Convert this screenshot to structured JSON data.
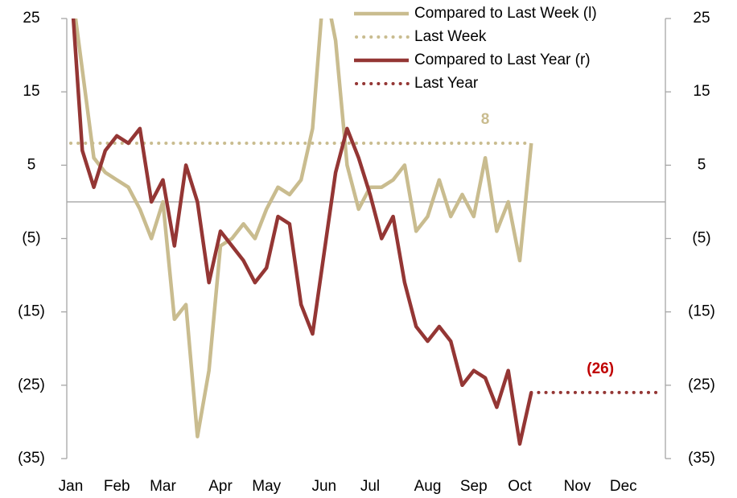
{
  "chart_data": {
    "type": "line",
    "categories": [
      "Jan",
      null,
      null,
      null,
      "Feb",
      null,
      null,
      null,
      "Mar",
      null,
      null,
      null,
      null,
      "Apr",
      null,
      null,
      null,
      "May",
      null,
      null,
      null,
      null,
      "Jun",
      null,
      null,
      null,
      "Jul",
      null,
      null,
      null,
      null,
      "Aug",
      null,
      null,
      null,
      "Sep",
      null,
      null,
      null,
      "Oct",
      null,
      null,
      null,
      null,
      "Nov",
      null,
      null,
      null,
      "Dec",
      null,
      null,
      null
    ],
    "series": [
      {
        "name": "Compared to Last Week (l)",
        "color": "#c9bc8f",
        "style": "solid",
        "axis": "y",
        "values": [
          30,
          18,
          6,
          4,
          3,
          2,
          -1,
          -5,
          0,
          -16,
          -14,
          -32,
          -23,
          -6,
          -5,
          -3,
          -5,
          -1,
          2,
          1,
          3,
          10,
          30,
          22,
          5,
          -1,
          2,
          2,
          3,
          5,
          -4,
          -2,
          3,
          -2,
          1,
          -2,
          6,
          -4,
          0,
          -8,
          8,
          null,
          null,
          null,
          null,
          null,
          null,
          null,
          null,
          null,
          null,
          null
        ]
      },
      {
        "name": "Last Week",
        "color": "#c9bc8f",
        "style": "dotted",
        "axis": "y",
        "values": [
          8,
          8,
          8,
          8,
          8,
          8,
          8,
          8,
          8,
          8,
          8,
          8,
          8,
          8,
          8,
          8,
          8,
          8,
          8,
          8,
          8,
          8,
          8,
          8,
          8,
          8,
          8,
          8,
          8,
          8,
          8,
          8,
          8,
          8,
          8,
          8,
          8,
          8,
          8,
          8,
          8,
          null,
          null,
          null,
          null,
          null,
          null,
          null,
          null,
          null,
          null,
          null
        ]
      },
      {
        "name": "Compared to Last Year (r)",
        "color": "#943634",
        "style": "solid",
        "axis": "y2",
        "values": [
          30,
          7,
          2,
          7,
          9,
          8,
          10,
          0,
          3,
          -6,
          5,
          0,
          -11,
          -4,
          -6,
          -8,
          -11,
          -9,
          -2,
          -3,
          -14,
          -18,
          -7,
          4,
          10,
          6,
          1,
          -5,
          -2,
          -11,
          -17,
          -19,
          -17,
          -19,
          -25,
          -23,
          -24,
          -28,
          -23,
          -33,
          -26,
          null,
          null,
          null,
          null,
          null,
          null,
          null,
          null,
          null,
          null,
          null
        ]
      },
      {
        "name": "Last Year",
        "color": "#943634",
        "style": "dotted",
        "axis": "y2",
        "values": [
          null,
          null,
          null,
          null,
          null,
          null,
          null,
          null,
          null,
          null,
          null,
          null,
          null,
          null,
          null,
          null,
          null,
          null,
          null,
          null,
          null,
          null,
          null,
          null,
          null,
          null,
          null,
          null,
          null,
          null,
          null,
          null,
          null,
          null,
          null,
          null,
          null,
          null,
          null,
          null,
          -26,
          -26,
          -26,
          -26,
          -26,
          -26,
          -26,
          -26,
          -26,
          -26,
          -26,
          -26
        ]
      }
    ],
    "annotations": [
      {
        "text": "8",
        "color": "#c9bc8f",
        "index": 36,
        "value": 8,
        "axis": "y"
      },
      {
        "text": "(26)",
        "color": "#c00000",
        "index": 46,
        "value": -26,
        "axis": "y2"
      }
    ],
    "ylim": [
      -35,
      25
    ],
    "yticks": [
      {
        "value": -35,
        "label": "(35)"
      },
      {
        "value": -25,
        "label": "(25)"
      },
      {
        "value": -15,
        "label": "(15)"
      },
      {
        "value": -5,
        "label": "(5)"
      },
      5,
      15,
      25
    ],
    "y2lim": [
      -35,
      25
    ],
    "y2ticks": [
      {
        "value": -35,
        "label": "(35)"
      },
      {
        "value": -25,
        "label": "(25)"
      },
      {
        "value": -15,
        "label": "(15)"
      },
      {
        "value": -5,
        "label": "(5)"
      },
      5,
      15,
      25
    ],
    "legend": "top-right",
    "grid": false
  }
}
